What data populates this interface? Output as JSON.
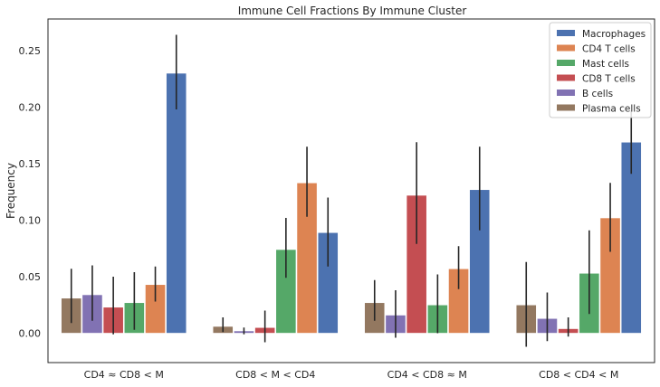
{
  "chart_data": {
    "type": "bar",
    "title": "Immune Cell Fractions By Immune Cluster",
    "xlabel": "",
    "ylabel": "Frequency",
    "ylim": [
      -0.026,
      0.278
    ],
    "yticks": [
      "0.00",
      "0.05",
      "0.10",
      "0.15",
      "0.20",
      "0.25"
    ],
    "grid": false,
    "legend_position": "top-right",
    "categories": [
      "CD4 ≈ CD8 < M",
      "CD8 < M < CD4",
      "CD4 < CD8 ≈ M",
      "CD8 < CD4 < M"
    ],
    "series": [
      {
        "name": "Macrophages",
        "color": "#4c72b0",
        "values": [
          0.23,
          0.089,
          0.127,
          0.169
        ],
        "err_low": [
          0.198,
          0.059,
          0.091,
          0.141
        ],
        "err_high": [
          0.264,
          0.12,
          0.165,
          0.197
        ]
      },
      {
        "name": "CD4 T cells",
        "color": "#dd8452",
        "values": [
          0.043,
          0.133,
          0.057,
          0.102
        ],
        "err_low": [
          0.028,
          0.103,
          0.039,
          0.072
        ],
        "err_high": [
          0.059,
          0.165,
          0.077,
          0.133
        ]
      },
      {
        "name": "Mast cells",
        "color": "#55a868",
        "values": [
          0.027,
          0.074,
          0.025,
          0.053
        ],
        "err_low": [
          0.003,
          0.049,
          0.0,
          0.017
        ],
        "err_high": [
          0.054,
          0.102,
          0.052,
          0.091
        ]
      },
      {
        "name": "CD8 T cells",
        "color": "#c44e52",
        "values": [
          0.023,
          0.005,
          0.122,
          0.004
        ],
        "err_low": [
          -0.001,
          -0.008,
          0.079,
          -0.003
        ],
        "err_high": [
          0.05,
          0.02,
          0.169,
          0.014
        ]
      },
      {
        "name": "B cells",
        "color": "#8172b3",
        "values": [
          0.034,
          0.002,
          0.016,
          0.013
        ],
        "err_low": [
          0.011,
          -0.001,
          -0.004,
          -0.007
        ],
        "err_high": [
          0.06,
          0.005,
          0.038,
          0.036
        ]
      },
      {
        "name": "Plasma cells",
        "color": "#937860",
        "values": [
          0.031,
          0.006,
          0.027,
          0.025
        ],
        "err_low": [
          0.009,
          0.001,
          0.011,
          -0.012
        ],
        "err_high": [
          0.057,
          0.014,
          0.047,
          0.063
        ]
      }
    ]
  }
}
